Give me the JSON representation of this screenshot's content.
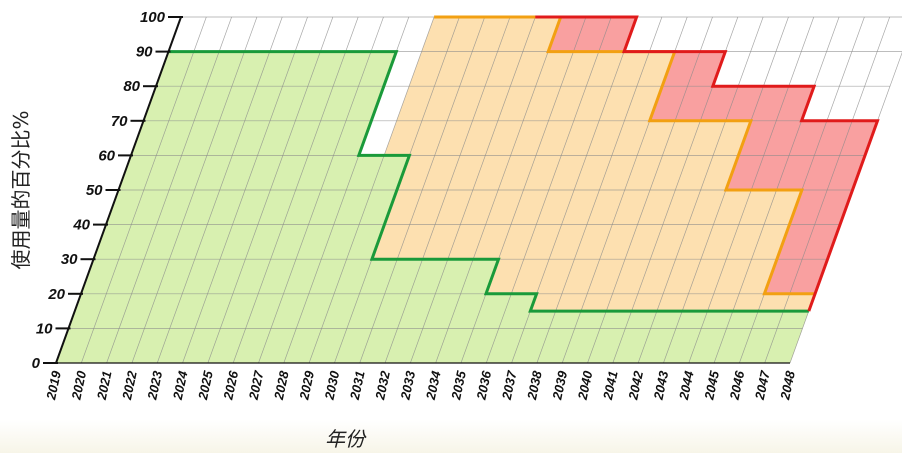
{
  "chart_data": {
    "type": "area",
    "title": "",
    "xlabel": "年份",
    "ylabel": "使用量的百分比%",
    "ylim": [
      0,
      100
    ],
    "yticks": [
      0,
      10,
      20,
      30,
      40,
      50,
      60,
      70,
      80,
      90,
      100
    ],
    "x": [
      2019,
      2020,
      2021,
      2022,
      2023,
      2024,
      2025,
      2026,
      2027,
      2028,
      2029,
      2030,
      2031,
      2032,
      2033,
      2034,
      2035,
      2036,
      2037,
      2038,
      2039,
      2040,
      2041,
      2042,
      2043,
      2044,
      2045,
      2046,
      2047,
      2048
    ],
    "xtick_labels": [
      "2019",
      "2020",
      "2021",
      "2022",
      "2023",
      "2024",
      "2025",
      "2026",
      "2027",
      "2028",
      "2029",
      "2030",
      "2031",
      "2032",
      "2033",
      "2034",
      "2035",
      "2036",
      "2037",
      "2038",
      "2039",
      "2040",
      "2041",
      "2042",
      "2043",
      "2044",
      "2045",
      "2046",
      "2047",
      "2048"
    ],
    "grid": true,
    "series": [
      {
        "color": "#1a9a3a",
        "fill": "#d8f0b0",
        "steps": [
          [
            2019,
            90
          ],
          [
            2028,
            60
          ],
          [
            2030,
            30
          ],
          [
            2035,
            20
          ],
          [
            2037,
            15
          ]
        ]
      },
      {
        "color": "#f2a012",
        "fill": "#fde0b0",
        "steps": [
          [
            2029,
            100
          ],
          [
            2034,
            90
          ],
          [
            2039,
            70
          ],
          [
            2043,
            50
          ],
          [
            2046,
            20
          ]
        ]
      },
      {
        "color": "#e01b1b",
        "fill": "#f9a0a0",
        "steps": [
          [
            2033,
            100
          ],
          [
            2037,
            90
          ],
          [
            2041,
            80
          ],
          [
            2045,
            70
          ],
          [
            2048,
            15
          ]
        ]
      }
    ]
  }
}
